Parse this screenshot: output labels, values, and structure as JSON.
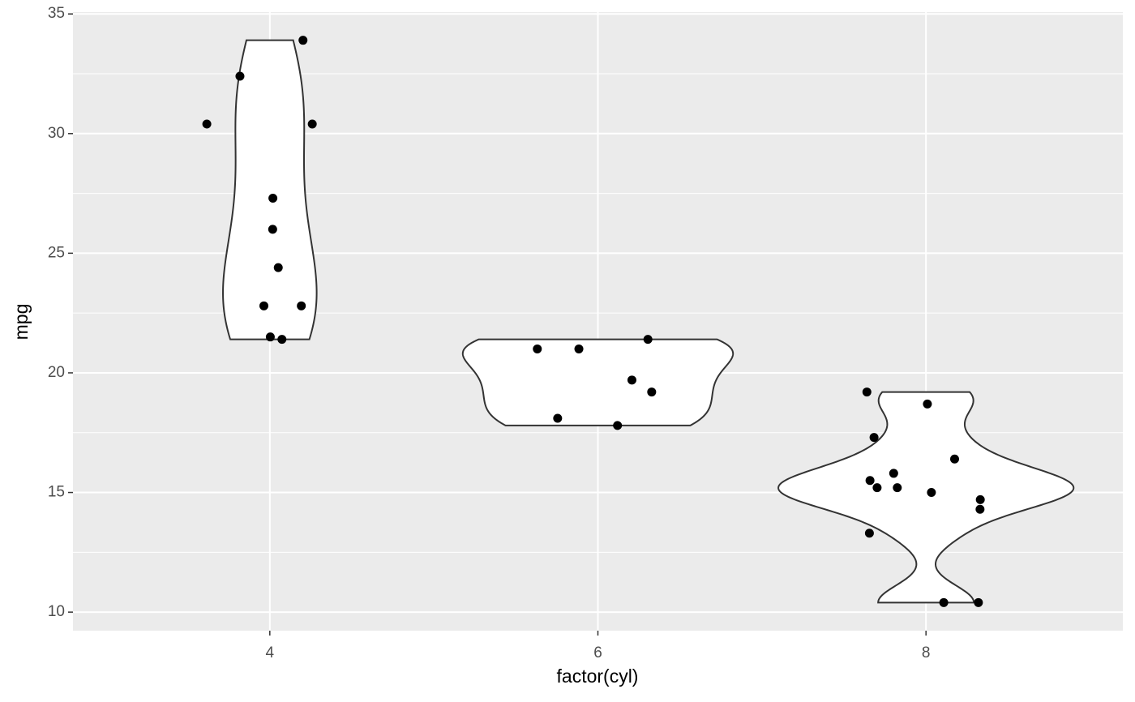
{
  "chart_data": {
    "type": "violin",
    "x_label": "factor(cyl)",
    "y_label": "mpg",
    "categories": [
      "4",
      "6",
      "8"
    ],
    "values": [
      [
        22.8,
        24.4,
        22.8,
        32.4,
        30.4,
        33.9,
        21.5,
        27.3,
        26.0,
        30.4,
        21.4
      ],
      [
        21.0,
        21.0,
        21.4,
        18.1,
        19.2,
        17.8,
        19.7
      ],
      [
        18.7,
        14.3,
        16.4,
        17.3,
        15.2,
        10.4,
        10.4,
        14.7,
        15.5,
        15.2,
        13.3,
        19.2,
        15.8,
        15.0
      ]
    ],
    "point_color": "#000000",
    "violin_fill": "#ffffff",
    "violin_stroke": "#333333",
    "ylim": [
      9.225,
      35.075
    ],
    "yticks": [
      10,
      15,
      20,
      25,
      30,
      35
    ],
    "grid": true
  }
}
